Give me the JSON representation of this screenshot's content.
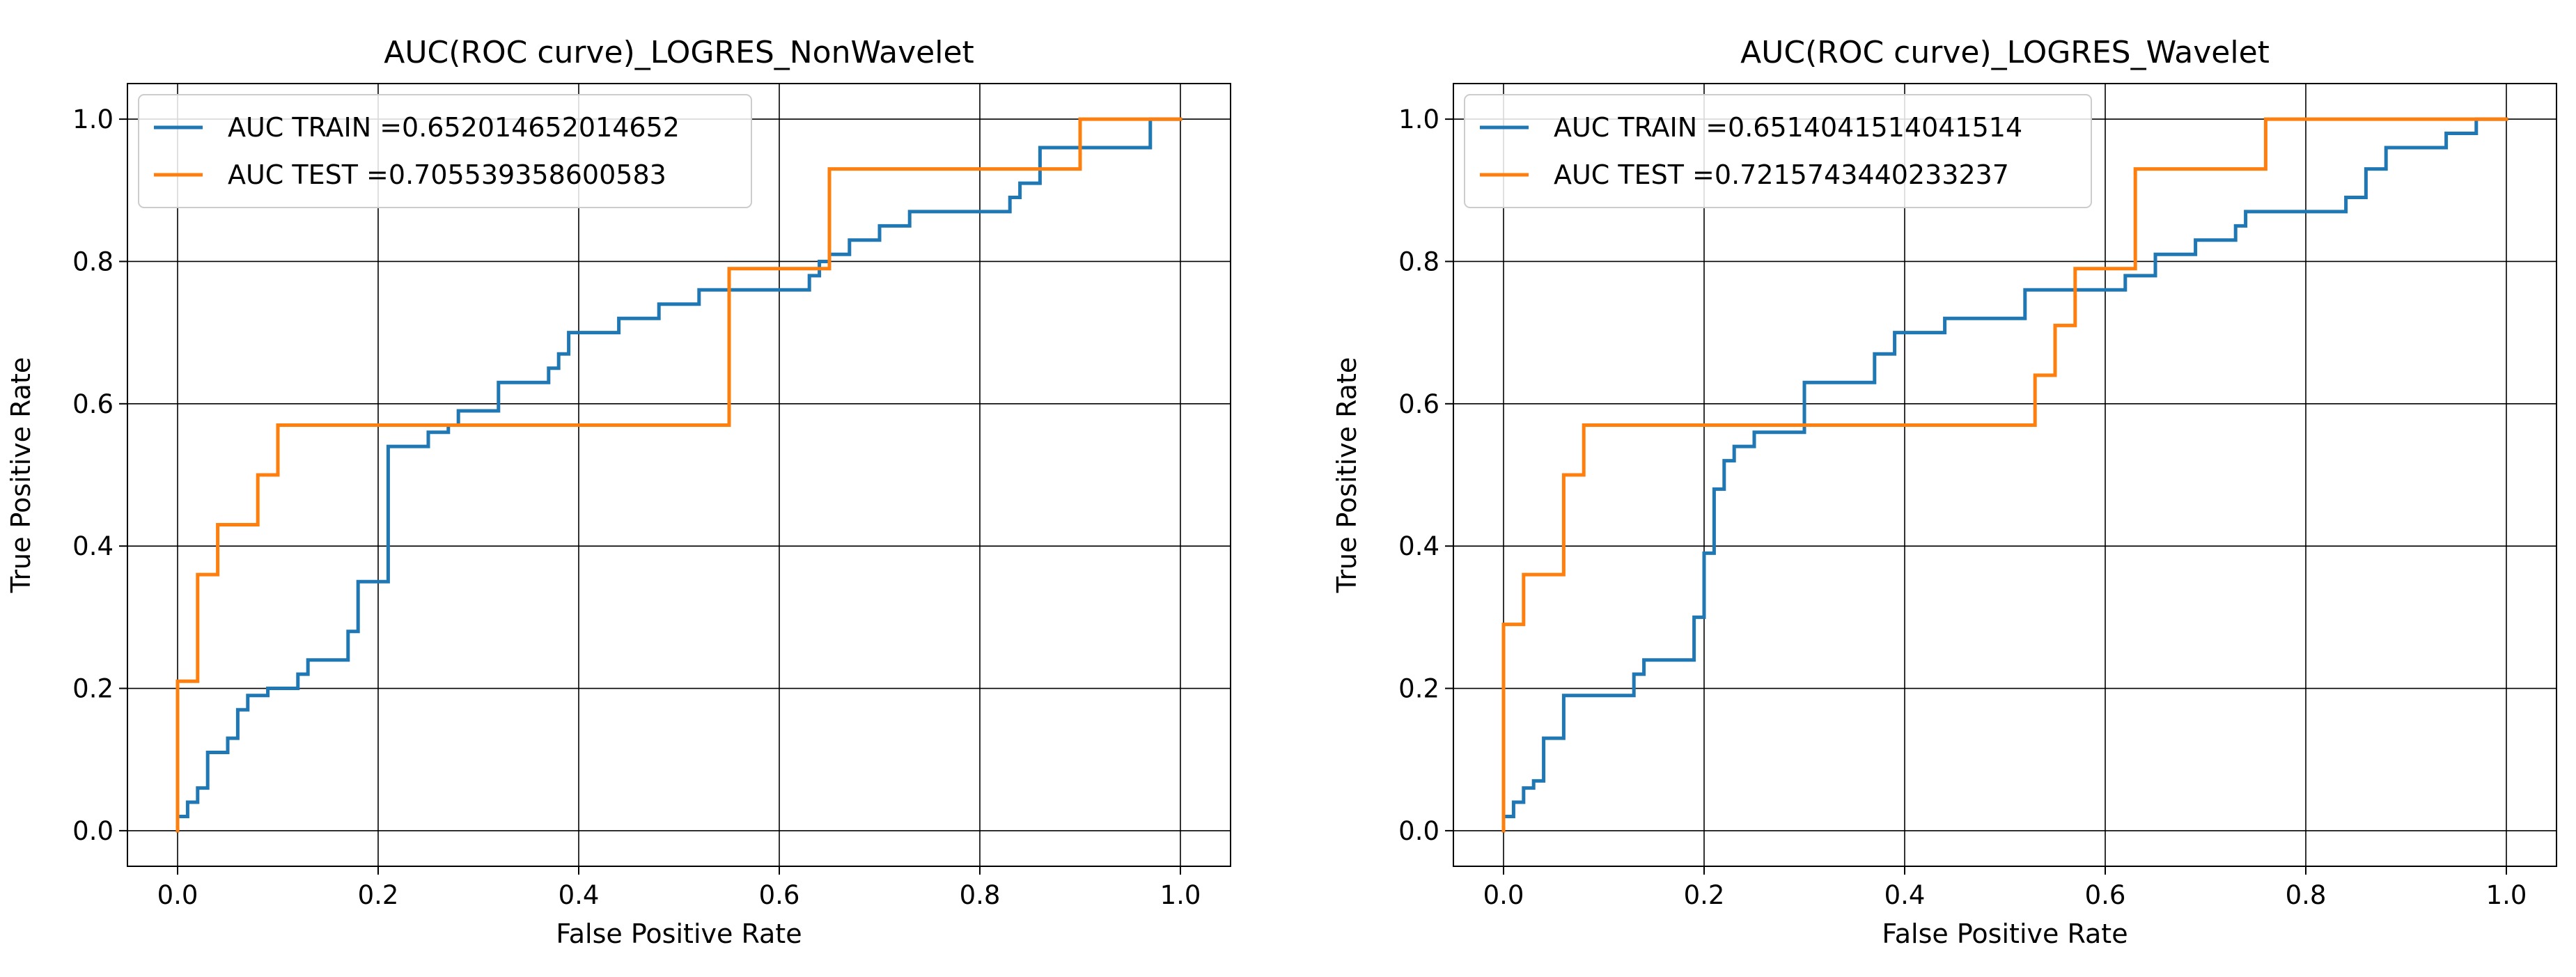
{
  "chart_data": [
    {
      "type": "line",
      "title": "AUC(ROC curve)_LOGRES_NonWavelet",
      "xlabel": "False Positive Rate",
      "ylabel": "True Positive Rate",
      "xlim": [
        -0.05,
        1.05
      ],
      "ylim": [
        -0.05,
        1.05
      ],
      "xticks": [
        "0.0",
        "0.2",
        "0.4",
        "0.6",
        "0.8",
        "1.0"
      ],
      "yticks": [
        "0.0",
        "0.2",
        "0.4",
        "0.6",
        "0.8",
        "1.0"
      ],
      "grid": true,
      "legend_position": "upper-left",
      "series": [
        {
          "name": "AUC TRAIN =0.652014652014652",
          "color": "#1f77b4",
          "x": [
            0.0,
            0.0,
            0.01,
            0.01,
            0.02,
            0.02,
            0.03,
            0.03,
            0.05,
            0.05,
            0.06,
            0.06,
            0.07,
            0.07,
            0.09,
            0.09,
            0.12,
            0.12,
            0.13,
            0.13,
            0.14,
            0.14,
            0.17,
            0.17,
            0.18,
            0.18,
            0.2,
            0.2,
            0.21,
            0.21,
            0.25,
            0.25,
            0.27,
            0.27,
            0.28,
            0.28,
            0.32,
            0.32,
            0.37,
            0.37,
            0.38,
            0.38,
            0.39,
            0.39,
            0.44,
            0.44,
            0.48,
            0.48,
            0.52,
            0.52,
            0.63,
            0.63,
            0.64,
            0.64,
            0.65,
            0.65,
            0.67,
            0.67,
            0.7,
            0.7,
            0.73,
            0.73,
            0.83,
            0.83,
            0.84,
            0.84,
            0.86,
            0.86,
            0.9,
            0.9,
            0.97,
            0.97,
            1.0
          ],
          "y": [
            0.0,
            0.02,
            0.02,
            0.04,
            0.04,
            0.06,
            0.06,
            0.11,
            0.11,
            0.13,
            0.13,
            0.17,
            0.17,
            0.19,
            0.19,
            0.2,
            0.2,
            0.22,
            0.22,
            0.24,
            0.24,
            0.24,
            0.24,
            0.28,
            0.28,
            0.35,
            0.35,
            0.35,
            0.35,
            0.54,
            0.54,
            0.56,
            0.56,
            0.57,
            0.57,
            0.59,
            0.59,
            0.63,
            0.63,
            0.65,
            0.65,
            0.67,
            0.67,
            0.7,
            0.7,
            0.72,
            0.72,
            0.74,
            0.74,
            0.76,
            0.76,
            0.78,
            0.78,
            0.8,
            0.8,
            0.81,
            0.81,
            0.83,
            0.83,
            0.85,
            0.85,
            0.87,
            0.87,
            0.89,
            0.89,
            0.91,
            0.91,
            0.96,
            0.96,
            0.96,
            0.96,
            1.0,
            1.0
          ]
        },
        {
          "name": "AUC TEST =0.705539358600583",
          "color": "#ff7f0e",
          "x": [
            0.0,
            0.0,
            0.02,
            0.02,
            0.04,
            0.04,
            0.08,
            0.08,
            0.1,
            0.1,
            0.55,
            0.55,
            0.65,
            0.65,
            0.9,
            0.9,
            1.0
          ],
          "y": [
            0.0,
            0.21,
            0.21,
            0.36,
            0.36,
            0.43,
            0.43,
            0.5,
            0.5,
            0.57,
            0.57,
            0.79,
            0.79,
            0.93,
            0.93,
            1.0,
            1.0
          ]
        }
      ]
    },
    {
      "type": "line",
      "title": "AUC(ROC curve)_LOGRES_Wavelet",
      "xlabel": "False Positive Rate",
      "ylabel": "True Positive Rate",
      "xlim": [
        -0.05,
        1.05
      ],
      "ylim": [
        -0.05,
        1.05
      ],
      "xticks": [
        "0.0",
        "0.2",
        "0.4",
        "0.6",
        "0.8",
        "1.0"
      ],
      "yticks": [
        "0.0",
        "0.2",
        "0.4",
        "0.6",
        "0.8",
        "1.0"
      ],
      "grid": true,
      "legend_position": "upper-left",
      "series": [
        {
          "name": "AUC TRAIN =0.6514041514041514",
          "color": "#1f77b4",
          "x": [
            0.0,
            0.0,
            0.01,
            0.01,
            0.02,
            0.02,
            0.03,
            0.03,
            0.04,
            0.04,
            0.06,
            0.06,
            0.13,
            0.13,
            0.14,
            0.14,
            0.19,
            0.19,
            0.2,
            0.2,
            0.21,
            0.21,
            0.22,
            0.22,
            0.23,
            0.23,
            0.25,
            0.25,
            0.3,
            0.3,
            0.37,
            0.37,
            0.39,
            0.39,
            0.44,
            0.44,
            0.52,
            0.52,
            0.62,
            0.62,
            0.65,
            0.65,
            0.69,
            0.69,
            0.73,
            0.73,
            0.74,
            0.74,
            0.84,
            0.84,
            0.86,
            0.86,
            0.88,
            0.88,
            0.94,
            0.94,
            0.97,
            0.97,
            1.0
          ],
          "y": [
            0.0,
            0.02,
            0.02,
            0.04,
            0.04,
            0.06,
            0.06,
            0.07,
            0.07,
            0.13,
            0.13,
            0.19,
            0.19,
            0.22,
            0.22,
            0.24,
            0.24,
            0.3,
            0.3,
            0.39,
            0.39,
            0.48,
            0.48,
            0.52,
            0.52,
            0.54,
            0.54,
            0.56,
            0.56,
            0.63,
            0.63,
            0.67,
            0.67,
            0.7,
            0.7,
            0.72,
            0.72,
            0.76,
            0.76,
            0.78,
            0.78,
            0.81,
            0.81,
            0.83,
            0.83,
            0.85,
            0.85,
            0.87,
            0.87,
            0.89,
            0.89,
            0.93,
            0.93,
            0.96,
            0.96,
            0.98,
            0.98,
            1.0,
            1.0
          ]
        },
        {
          "name": "AUC TEST =0.7215743440233237",
          "color": "#ff7f0e",
          "x": [
            0.0,
            0.0,
            0.02,
            0.02,
            0.06,
            0.06,
            0.08,
            0.08,
            0.53,
            0.53,
            0.55,
            0.55,
            0.57,
            0.57,
            0.63,
            0.63,
            0.76,
            0.76,
            1.0
          ],
          "y": [
            0.0,
            0.29,
            0.29,
            0.36,
            0.36,
            0.5,
            0.5,
            0.57,
            0.57,
            0.64,
            0.64,
            0.71,
            0.71,
            0.79,
            0.79,
            0.93,
            0.93,
            1.0,
            1.0
          ]
        }
      ]
    }
  ]
}
